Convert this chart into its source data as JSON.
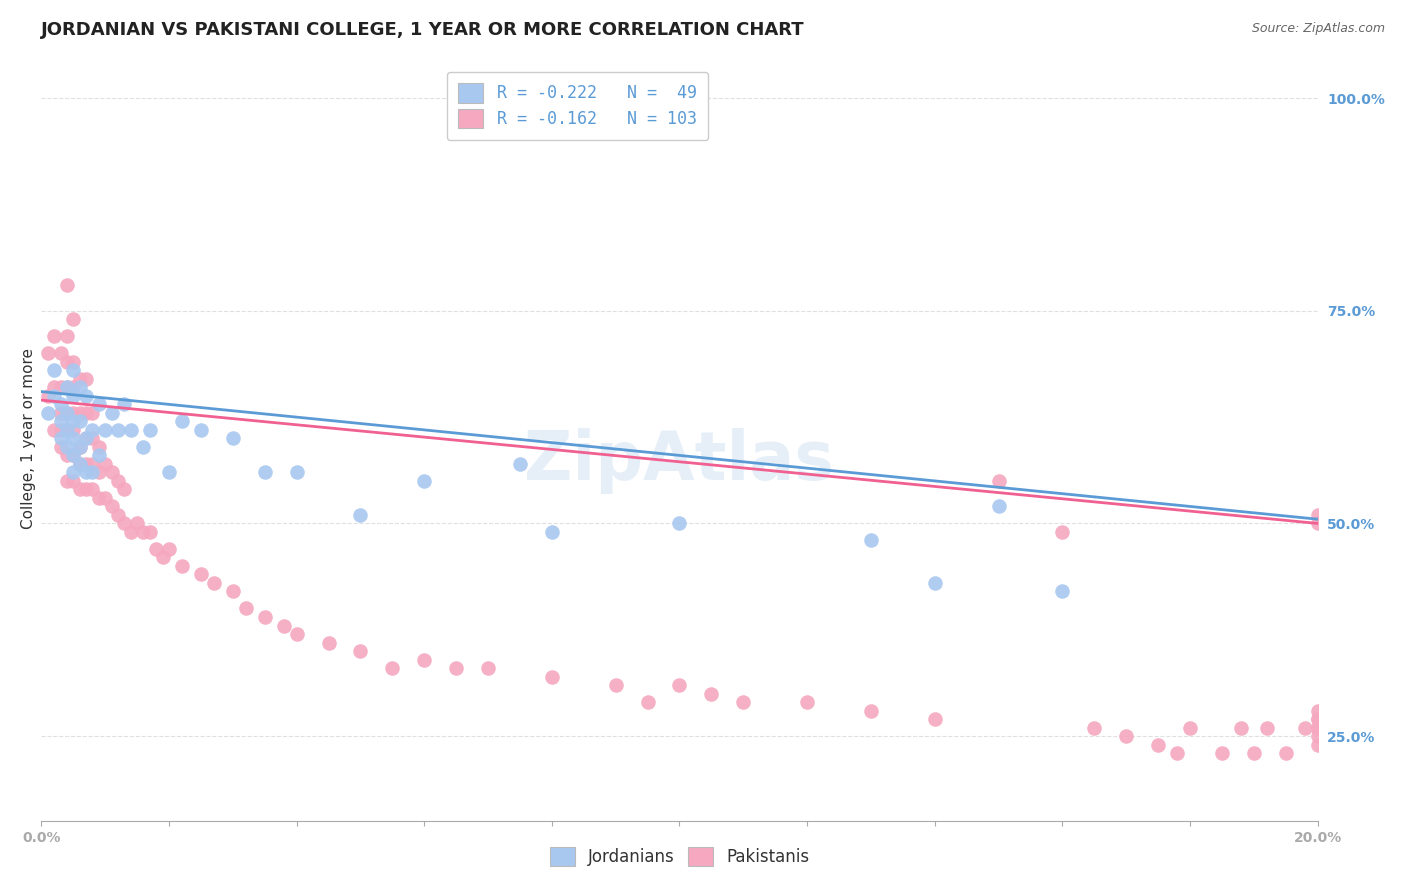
{
  "title": "JORDANIAN VS PAKISTANI COLLEGE, 1 YEAR OR MORE CORRELATION CHART",
  "source": "Source: ZipAtlas.com",
  "ylabel": "College, 1 year or more",
  "xlim": [
    0.0,
    0.2
  ],
  "ylim": [
    0.15,
    1.05
  ],
  "yticks": [
    0.25,
    0.5,
    0.75,
    1.0
  ],
  "yticklabels": [
    "25.0%",
    "50.0%",
    "75.0%",
    "100.0%"
  ],
  "jordanian_color": "#a8c8f0",
  "pakistani_color": "#f5a8c0",
  "jordanian_line_color": "#5b9bd5",
  "pakistani_line_color": "#f06090",
  "R_jordanian": -0.222,
  "N_jordanian": 49,
  "R_pakistani": -0.162,
  "N_pakistani": 103,
  "background_color": "#ffffff",
  "grid_color": "#e0e0e0",
  "title_fontsize": 13,
  "axis_label_fontsize": 11,
  "tick_fontsize": 10,
  "legend_fontsize": 12,
  "jord_line_x": [
    0.0,
    0.2
  ],
  "jord_line_y": [
    0.655,
    0.505
  ],
  "pak_line_x": [
    0.0,
    0.2
  ],
  "pak_line_y": [
    0.645,
    0.5
  ],
  "jordanian_x": [
    0.001,
    0.002,
    0.002,
    0.003,
    0.003,
    0.003,
    0.004,
    0.004,
    0.004,
    0.004,
    0.005,
    0.005,
    0.005,
    0.005,
    0.005,
    0.005,
    0.006,
    0.006,
    0.006,
    0.006,
    0.007,
    0.007,
    0.007,
    0.008,
    0.008,
    0.009,
    0.009,
    0.01,
    0.011,
    0.012,
    0.013,
    0.014,
    0.016,
    0.017,
    0.02,
    0.022,
    0.025,
    0.03,
    0.035,
    0.04,
    0.05,
    0.06,
    0.075,
    0.08,
    0.1,
    0.13,
    0.14,
    0.15,
    0.16
  ],
  "jordanian_y": [
    0.63,
    0.65,
    0.68,
    0.6,
    0.62,
    0.64,
    0.59,
    0.61,
    0.63,
    0.66,
    0.56,
    0.58,
    0.6,
    0.62,
    0.65,
    0.68,
    0.57,
    0.59,
    0.62,
    0.66,
    0.56,
    0.6,
    0.65,
    0.56,
    0.61,
    0.58,
    0.64,
    0.61,
    0.63,
    0.61,
    0.64,
    0.61,
    0.59,
    0.61,
    0.56,
    0.62,
    0.61,
    0.6,
    0.56,
    0.56,
    0.51,
    0.55,
    0.57,
    0.49,
    0.5,
    0.48,
    0.43,
    0.52,
    0.42
  ],
  "pakistani_x": [
    0.001,
    0.001,
    0.002,
    0.002,
    0.002,
    0.003,
    0.003,
    0.003,
    0.003,
    0.003,
    0.004,
    0.004,
    0.004,
    0.004,
    0.004,
    0.004,
    0.004,
    0.004,
    0.005,
    0.005,
    0.005,
    0.005,
    0.005,
    0.005,
    0.005,
    0.006,
    0.006,
    0.006,
    0.006,
    0.006,
    0.007,
    0.007,
    0.007,
    0.007,
    0.007,
    0.008,
    0.008,
    0.008,
    0.008,
    0.009,
    0.009,
    0.009,
    0.01,
    0.01,
    0.011,
    0.011,
    0.012,
    0.012,
    0.013,
    0.013,
    0.014,
    0.015,
    0.016,
    0.017,
    0.018,
    0.019,
    0.02,
    0.022,
    0.025,
    0.027,
    0.03,
    0.032,
    0.035,
    0.038,
    0.04,
    0.045,
    0.05,
    0.055,
    0.06,
    0.065,
    0.07,
    0.08,
    0.09,
    0.095,
    0.1,
    0.105,
    0.11,
    0.12,
    0.13,
    0.14,
    0.15,
    0.16,
    0.165,
    0.17,
    0.175,
    0.178,
    0.18,
    0.185,
    0.188,
    0.19,
    0.192,
    0.195,
    0.198,
    0.2,
    0.2,
    0.2,
    0.2,
    0.2,
    0.2,
    0.2,
    0.2,
    0.2,
    0.2
  ],
  "pakistani_y": [
    0.65,
    0.7,
    0.61,
    0.66,
    0.72,
    0.59,
    0.61,
    0.63,
    0.66,
    0.7,
    0.55,
    0.58,
    0.61,
    0.63,
    0.66,
    0.69,
    0.72,
    0.78,
    0.55,
    0.58,
    0.61,
    0.63,
    0.66,
    0.69,
    0.74,
    0.54,
    0.57,
    0.59,
    0.63,
    0.67,
    0.54,
    0.57,
    0.6,
    0.63,
    0.67,
    0.54,
    0.57,
    0.6,
    0.63,
    0.53,
    0.56,
    0.59,
    0.53,
    0.57,
    0.52,
    0.56,
    0.51,
    0.55,
    0.5,
    0.54,
    0.49,
    0.5,
    0.49,
    0.49,
    0.47,
    0.46,
    0.47,
    0.45,
    0.44,
    0.43,
    0.42,
    0.4,
    0.39,
    0.38,
    0.37,
    0.36,
    0.35,
    0.33,
    0.34,
    0.33,
    0.33,
    0.32,
    0.31,
    0.29,
    0.31,
    0.3,
    0.29,
    0.29,
    0.28,
    0.27,
    0.55,
    0.49,
    0.26,
    0.25,
    0.24,
    0.23,
    0.26,
    0.23,
    0.26,
    0.23,
    0.26,
    0.23,
    0.26,
    0.51,
    0.27,
    0.26,
    0.28,
    0.24,
    0.27,
    0.26,
    0.5,
    0.26,
    0.25
  ]
}
